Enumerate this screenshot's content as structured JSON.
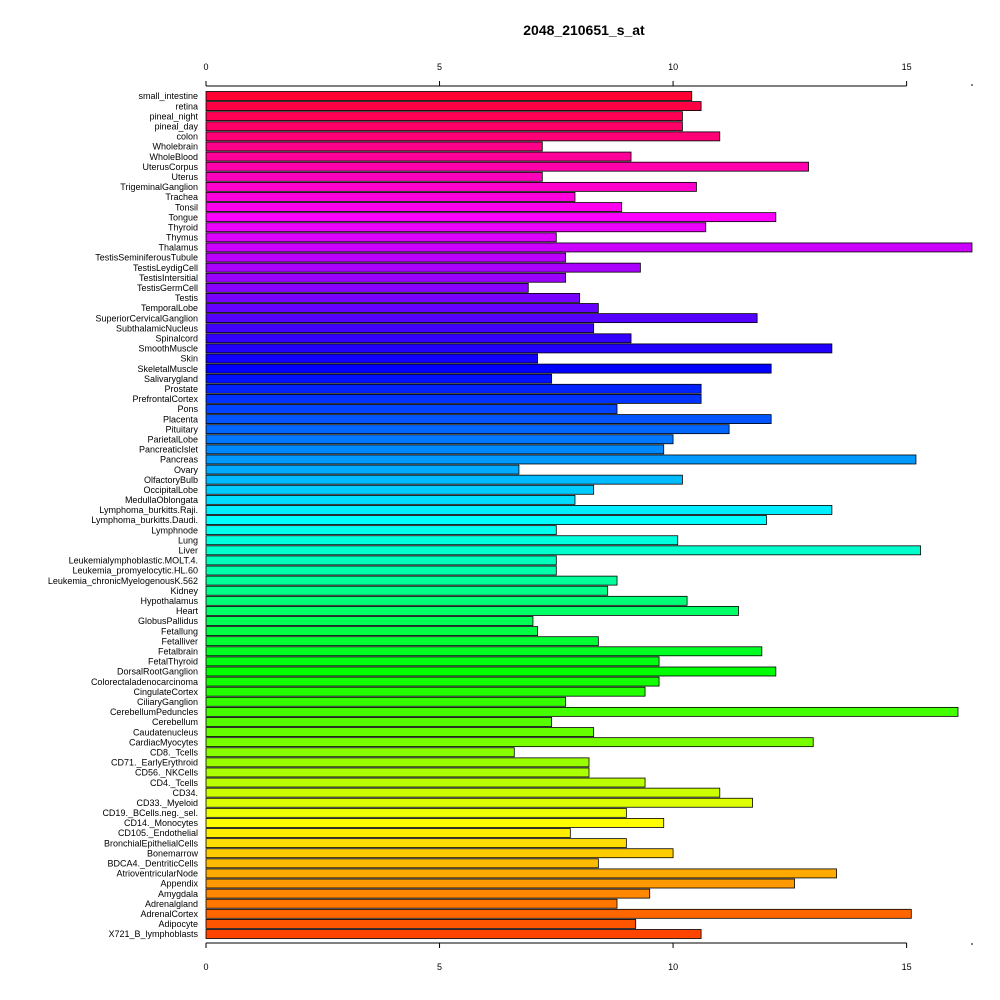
{
  "chart_data": {
    "type": "bar",
    "orientation": "horizontal",
    "title": "2048_210651_s_at",
    "xlim": [
      0,
      16.4
    ],
    "xticks": [
      0,
      5,
      10,
      15
    ],
    "axes": [
      "top",
      "bottom"
    ],
    "categories": [
      "small_intestine",
      "retina",
      "pineal_night",
      "pineal_day",
      "colon",
      "Wholebrain",
      "WholeBlood",
      "UterusCorpus",
      "Uterus",
      "TrigeminalGanglion",
      "Trachea",
      "Tonsil",
      "Tongue",
      "Thyroid",
      "Thymus",
      "Thalamus",
      "TestisSeminiferousTubule",
      "TestisLeydigCell",
      "TestisIntersitial",
      "TestisGermCell",
      "Testis",
      "TemporalLobe",
      "SuperiorCervicalGanglion",
      "SubthalamicNucleus",
      "Spinalcord",
      "SmoothMuscle",
      "Skin",
      "SkeletalMuscle",
      "Salivarygland",
      "Prostate",
      "PrefrontalCortex",
      "Pons",
      "Placenta",
      "Pituitary",
      "ParietalLobe",
      "PancreaticIslet",
      "Pancreas",
      "Ovary",
      "OlfactoryBulb",
      "OccipitalLobe",
      "MedullaOblongata",
      "Lymphoma_burkitts.Raji.",
      "Lymphoma_burkitts.Daudi.",
      "Lymphnode",
      "Lung",
      "Liver",
      "Leukemialymphoblastic.MOLT.4.",
      "Leukemia_promyelocytic.HL.60",
      "Leukemia_chronicMyelogenousK.562",
      "Kidney",
      "Hypothalamus",
      "Heart",
      "GlobusPallidus",
      "Fetallung",
      "Fetalliver",
      "Fetalbrain",
      "FetalThyroid",
      "DorsalRootGanglion",
      "Colorectaladenocarcinoma",
      "CingulateCortex",
      "CiliaryGanglion",
      "CerebellumPeduncles",
      "Cerebellum",
      "Caudatenucleus",
      "CardiacMyocytes",
      "CD8._Tcells",
      "CD71._EarlyErythroid",
      "CD56._NKCells",
      "CD4._Tcells",
      "CD34.",
      "CD33._Myeloid",
      "CD19._BCells.neg._sel.",
      "CD14._Monocytes",
      "CD105._Endothelial",
      "BronchialEpithelialCells",
      "Bonemarrow",
      "BDCA4._DentriticCells",
      "AtrioventricularNode",
      "Appendix",
      "Amygdala",
      "Adrenalgland",
      "AdrenalCortex",
      "Adipocyte",
      "X721_B_lymphoblasts"
    ],
    "values": [
      10.4,
      10.6,
      10.2,
      10.2,
      11.0,
      7.2,
      9.1,
      12.9,
      7.2,
      10.5,
      7.9,
      8.9,
      12.2,
      10.7,
      7.5,
      16.4,
      7.7,
      9.3,
      7.7,
      6.9,
      8.0,
      8.4,
      11.8,
      8.3,
      9.1,
      13.4,
      7.1,
      12.1,
      7.4,
      10.6,
      10.6,
      8.8,
      12.1,
      11.2,
      10.0,
      9.8,
      15.2,
      6.7,
      10.2,
      8.3,
      7.9,
      13.4,
      12.0,
      7.5,
      10.1,
      15.3,
      7.5,
      7.5,
      8.8,
      8.6,
      10.3,
      11.4,
      7.0,
      7.1,
      8.4,
      11.9,
      9.7,
      12.2,
      9.7,
      9.4,
      7.7,
      16.1,
      7.4,
      8.3,
      13.0,
      6.6,
      8.2,
      8.2,
      9.4,
      11.0,
      11.7,
      9.0,
      9.8,
      7.8,
      9.0,
      10.0,
      8.4,
      13.5,
      12.6,
      9.5,
      8.8,
      15.1,
      9.2,
      10.6
    ],
    "colors": [
      "#FF0033",
      "#FF0044",
      "#FF0055",
      "#FF0066",
      "#FF0077",
      "#FF0088",
      "#FF0099",
      "#FF00AA",
      "#FF00BB",
      "#FF00CC",
      "#FF00DD",
      "#FF00EE",
      "#FF00FF",
      "#EE00FF",
      "#DD00FF",
      "#CC00FF",
      "#BB00FF",
      "#AA00FF",
      "#9900FF",
      "#8800FF",
      "#7700FF",
      "#6600FF",
      "#5500FF",
      "#4400FF",
      "#3300FF",
      "#2200FF",
      "#1100FF",
      "#0000FF",
      "#0011FF",
      "#0022FF",
      "#0033FF",
      "#0044FF",
      "#0055FF",
      "#0066FF",
      "#0077FF",
      "#0088FF",
      "#0099FF",
      "#00AAFF",
      "#00BBFF",
      "#00CCFF",
      "#00DDFF",
      "#00EEFF",
      "#00FFFF",
      "#00FFEE",
      "#00FFDD",
      "#00FFCC",
      "#00FFBB",
      "#00FFAA",
      "#00FF99",
      "#00FF88",
      "#00FF77",
      "#00FF66",
      "#00FF55",
      "#00FF44",
      "#00FF33",
      "#00FF22",
      "#00FF11",
      "#00FF00",
      "#11FF00",
      "#22FF00",
      "#33FF00",
      "#44FF00",
      "#55FF00",
      "#66FF00",
      "#77FF00",
      "#88FF00",
      "#99FF00",
      "#AAFF00",
      "#BBFF00",
      "#CCFF00",
      "#DDFF00",
      "#EEFF00",
      "#FFFF00",
      "#FFEE00",
      "#FFDD00",
      "#FFCC00",
      "#FFBB00",
      "#FFAA00",
      "#FF9900",
      "#FF8800",
      "#FF7700",
      "#FF6600",
      "#FF5500",
      "#FF4400"
    ]
  }
}
